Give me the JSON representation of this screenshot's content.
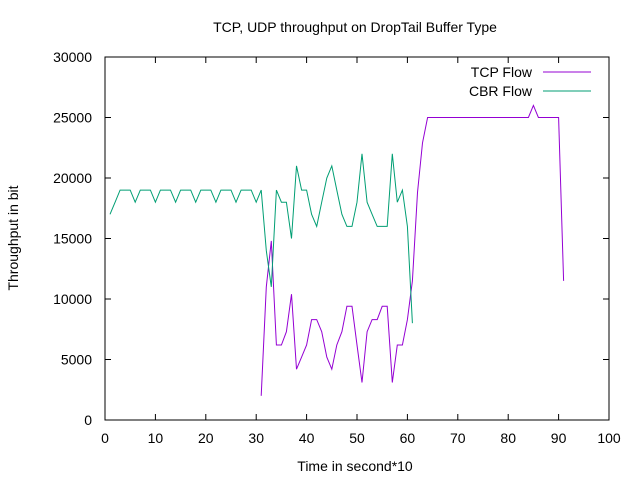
{
  "chart_data": {
    "type": "line",
    "title": "TCP, UDP throughput on DropTail Buffer Type",
    "xlabel": "Time in second*10",
    "ylabel": "Throughput in bit",
    "xlim": [
      0,
      100
    ],
    "ylim": [
      0,
      30000
    ],
    "x_ticks": [
      0,
      10,
      20,
      30,
      40,
      50,
      60,
      70,
      80,
      90,
      100
    ],
    "y_ticks": [
      0,
      5000,
      10000,
      15000,
      20000,
      25000,
      30000
    ],
    "grid": false,
    "legend_position": "top-right",
    "series": [
      {
        "name": "TCP Flow",
        "color": "#9400d3",
        "points": [
          [
            31,
            2000
          ],
          [
            32,
            11000
          ],
          [
            33,
            14800
          ],
          [
            34,
            6200
          ],
          [
            35,
            6200
          ],
          [
            36,
            7300
          ],
          [
            37,
            10400
          ],
          [
            38,
            4200
          ],
          [
            39,
            5200
          ],
          [
            40,
            6200
          ],
          [
            41,
            8300
          ],
          [
            42,
            8300
          ],
          [
            43,
            7300
          ],
          [
            44,
            5200
          ],
          [
            45,
            4200
          ],
          [
            46,
            6200
          ],
          [
            47,
            7300
          ],
          [
            48,
            9400
          ],
          [
            49,
            9400
          ],
          [
            50,
            6200
          ],
          [
            51,
            3100
          ],
          [
            52,
            7300
          ],
          [
            53,
            8300
          ],
          [
            54,
            8300
          ],
          [
            55,
            9400
          ],
          [
            56,
            9400
          ],
          [
            57,
            3100
          ],
          [
            58,
            6200
          ],
          [
            59,
            6200
          ],
          [
            60,
            8300
          ],
          [
            61,
            11500
          ],
          [
            62,
            18800
          ],
          [
            63,
            22900
          ],
          [
            64,
            25000
          ],
          [
            65,
            25000
          ],
          [
            70,
            25000
          ],
          [
            75,
            25000
          ],
          [
            80,
            25000
          ],
          [
            84,
            25000
          ],
          [
            85,
            26000
          ],
          [
            86,
            25000
          ],
          [
            88,
            25000
          ],
          [
            90,
            25000
          ],
          [
            91,
            11500
          ]
        ]
      },
      {
        "name": "CBR Flow",
        "color": "#009e73",
        "points": [
          [
            1,
            17000
          ],
          [
            2,
            18000
          ],
          [
            3,
            19000
          ],
          [
            4,
            19000
          ],
          [
            5,
            19000
          ],
          [
            6,
            18000
          ],
          [
            7,
            19000
          ],
          [
            8,
            19000
          ],
          [
            9,
            19000
          ],
          [
            10,
            18000
          ],
          [
            11,
            19000
          ],
          [
            12,
            19000
          ],
          [
            13,
            19000
          ],
          [
            14,
            18000
          ],
          [
            15,
            19000
          ],
          [
            16,
            19000
          ],
          [
            17,
            19000
          ],
          [
            18,
            18000
          ],
          [
            19,
            19000
          ],
          [
            20,
            19000
          ],
          [
            21,
            19000
          ],
          [
            22,
            18000
          ],
          [
            23,
            19000
          ],
          [
            24,
            19000
          ],
          [
            25,
            19000
          ],
          [
            26,
            18000
          ],
          [
            27,
            19000
          ],
          [
            28,
            19000
          ],
          [
            29,
            19000
          ],
          [
            30,
            18000
          ],
          [
            31,
            19000
          ],
          [
            32,
            14000
          ],
          [
            33,
            11000
          ],
          [
            34,
            19000
          ],
          [
            35,
            18000
          ],
          [
            36,
            18000
          ],
          [
            37,
            15000
          ],
          [
            38,
            21000
          ],
          [
            39,
            19000
          ],
          [
            40,
            19000
          ],
          [
            41,
            17000
          ],
          [
            42,
            16000
          ],
          [
            43,
            18000
          ],
          [
            44,
            20000
          ],
          [
            45,
            21000
          ],
          [
            46,
            19000
          ],
          [
            47,
            17000
          ],
          [
            48,
            16000
          ],
          [
            49,
            16000
          ],
          [
            50,
            18000
          ],
          [
            51,
            22000
          ],
          [
            52,
            18000
          ],
          [
            53,
            17000
          ],
          [
            54,
            16000
          ],
          [
            55,
            16000
          ],
          [
            56,
            16000
          ],
          [
            57,
            22000
          ],
          [
            58,
            18000
          ],
          [
            59,
            19000
          ],
          [
            60,
            16000
          ],
          [
            61,
            8000
          ]
        ]
      }
    ]
  }
}
